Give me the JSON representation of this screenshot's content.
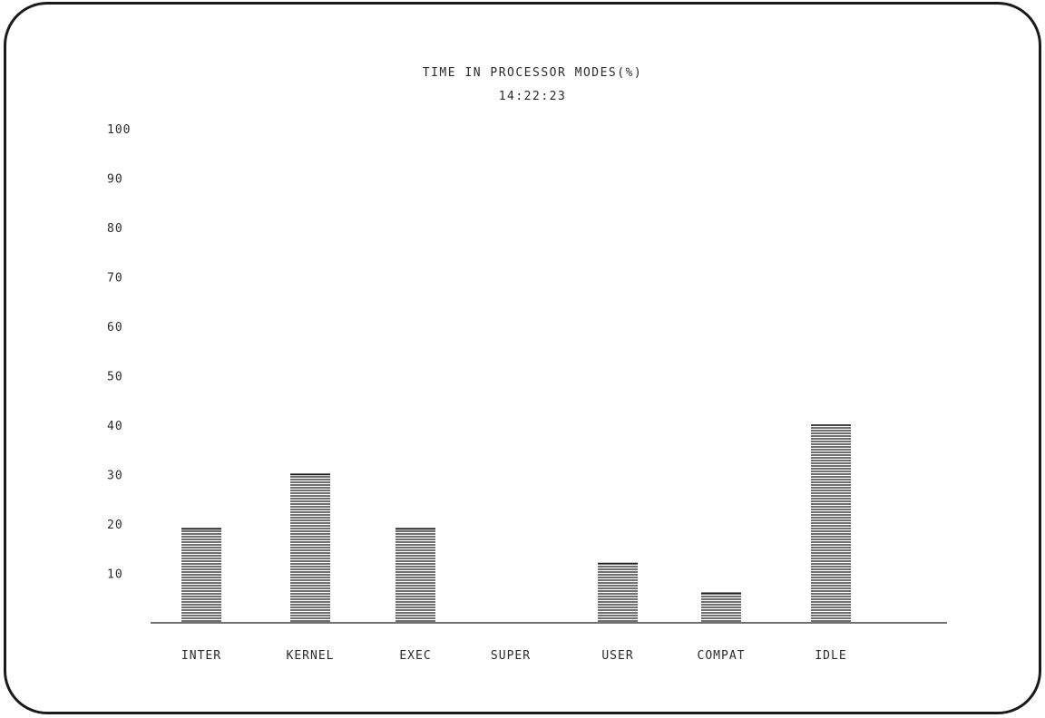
{
  "chart_data": {
    "type": "bar",
    "title": "TIME IN PROCESSOR MODES(%)",
    "subtitle": "14:22:23",
    "categories": [
      "INTER",
      "KERNEL",
      "EXEC",
      "SUPER",
      "USER",
      "COMPAT",
      "IDLE"
    ],
    "values": [
      19,
      30,
      19,
      0,
      12,
      6,
      40
    ],
    "xlabel": "",
    "ylabel": "",
    "ylim": [
      0,
      100
    ],
    "yticks": [
      "10",
      "20",
      "30",
      "40",
      "50",
      "60",
      "70",
      "80",
      "90",
      "100"
    ],
    "fill": "horizontal hatch",
    "grid": false,
    "bar_color": "#1a1a1a",
    "text_color": "#2a2a2a",
    "background": "#ffffff"
  }
}
